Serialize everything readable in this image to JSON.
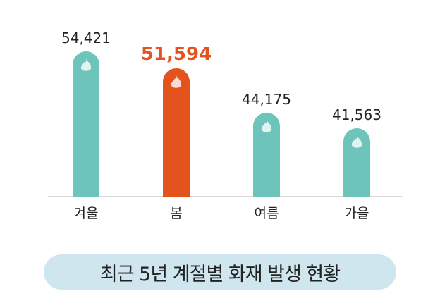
{
  "chart_data": {
    "type": "bar",
    "title": "최근 5년 계절별 화재 발생 현황",
    "categories": [
      "겨울",
      "봄",
      "여름",
      "가을"
    ],
    "values": [
      54421,
      51594,
      44175,
      41563
    ],
    "value_labels": [
      "54,421",
      "51,594",
      "44,175",
      "41,563"
    ],
    "highlight_index": 1,
    "ylim": [
      30000,
      56000
    ],
    "grid": false,
    "icon": "flame-icon",
    "colors": {
      "bar": "#6cc4bb",
      "highlight": "#e4531e",
      "label": "#222222",
      "axis": "#cccccc",
      "title_bg": "#cfe6ef"
    }
  }
}
